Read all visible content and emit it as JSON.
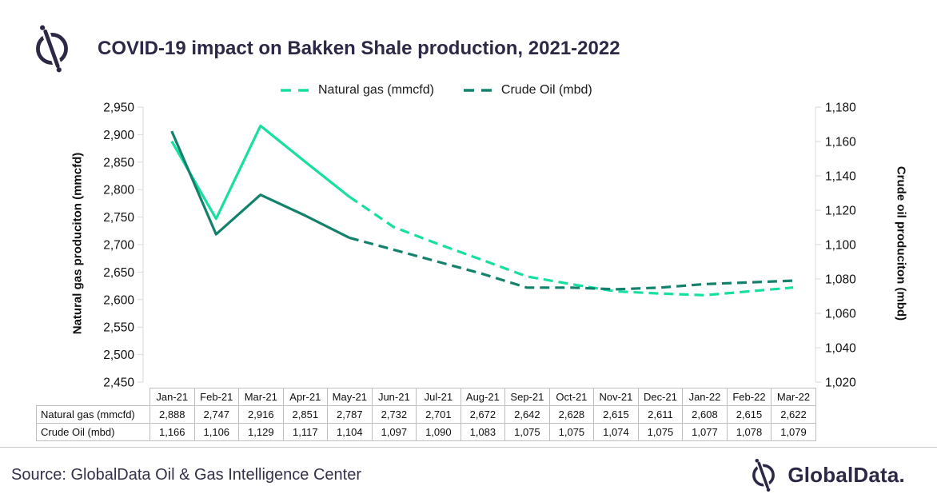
{
  "header": {
    "title": "COVID-19 impact on Bakken Shale production, 2021-2022"
  },
  "chart_data": {
    "type": "line",
    "title": "COVID-19 impact on Bakken Shale production, 2021-2022",
    "categories": [
      "Jan-21",
      "Feb-21",
      "Mar-21",
      "Apr-21",
      "May-21",
      "Jun-21",
      "Jul-21",
      "Aug-21",
      "Sep-21",
      "Oct-21",
      "Nov-21",
      "Dec-21",
      "Jan-22",
      "Feb-22",
      "Mar-22"
    ],
    "series": [
      {
        "name": "Natural gas (mmcfd)",
        "axis": "left",
        "color": "#17DFA0",
        "line_style": "solid through May-21, dashed (forecast) after",
        "solid_through_index": 4,
        "values": [
          2888,
          2747,
          2916,
          2851,
          2787,
          2732,
          2701,
          2672,
          2642,
          2628,
          2615,
          2611,
          2608,
          2615,
          2622
        ]
      },
      {
        "name": "Crude Oil (mbd)",
        "axis": "right",
        "color": "#12826C",
        "line_style": "solid through May-21, dashed (forecast) after",
        "solid_through_index": 4,
        "values": [
          1166,
          1106,
          1129,
          1117,
          1104,
          1097,
          1090,
          1083,
          1075,
          1075,
          1074,
          1075,
          1077,
          1078,
          1079
        ]
      }
    ],
    "left_axis": {
      "label": "Natural gas produciton (mmcfd)",
      "min": 2450,
      "max": 2950,
      "tick_step": 50
    },
    "right_axis": {
      "label": "Crude oil produciton (mbd)",
      "min": 1020,
      "max": 1180,
      "tick_step": 20
    },
    "legend_position": "top",
    "grid": false,
    "data_table_shown": true
  },
  "colors": {
    "brand_navy": "#2D2846",
    "axis_line": "#D9D9D9",
    "table_border": "#BFBFBF"
  },
  "footer": {
    "source": "Source: GlobalData Oil & Gas Intelligence Center",
    "brand": "GlobalData."
  }
}
